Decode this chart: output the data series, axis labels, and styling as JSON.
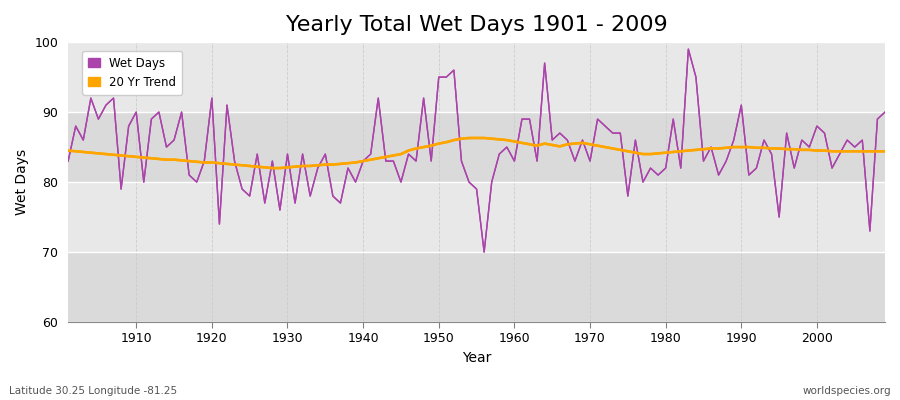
{
  "title": "Yearly Total Wet Days 1901 - 2009",
  "xlabel": "Year",
  "ylabel": "Wet Days",
  "xlim": [
    1901,
    2009
  ],
  "ylim": [
    60,
    100
  ],
  "yticks": [
    60,
    70,
    80,
    90,
    100
  ],
  "xticks": [
    1910,
    1920,
    1930,
    1940,
    1950,
    1960,
    1970,
    1980,
    1990,
    2000
  ],
  "wet_days_color": "#AA44AA",
  "trend_color": "#FFA500",
  "figure_bg_color": "#FFFFFF",
  "plot_bg_color": "#E8E8E8",
  "title_fontsize": 16,
  "label_fontsize": 10,
  "tick_fontsize": 9,
  "footer_left": "Latitude 30.25 Longitude -81.25",
  "footer_right": "worldspecies.org",
  "years": [
    1901,
    1902,
    1903,
    1904,
    1905,
    1906,
    1907,
    1908,
    1909,
    1910,
    1911,
    1912,
    1913,
    1914,
    1915,
    1916,
    1917,
    1918,
    1919,
    1920,
    1921,
    1922,
    1923,
    1924,
    1925,
    1926,
    1927,
    1928,
    1929,
    1930,
    1931,
    1932,
    1933,
    1934,
    1935,
    1936,
    1937,
    1938,
    1939,
    1940,
    1941,
    1942,
    1943,
    1944,
    1945,
    1946,
    1947,
    1948,
    1949,
    1950,
    1951,
    1952,
    1953,
    1954,
    1955,
    1956,
    1957,
    1958,
    1959,
    1960,
    1961,
    1962,
    1963,
    1964,
    1965,
    1966,
    1967,
    1968,
    1969,
    1970,
    1971,
    1972,
    1973,
    1974,
    1975,
    1976,
    1977,
    1978,
    1979,
    1980,
    1981,
    1982,
    1983,
    1984,
    1985,
    1986,
    1987,
    1988,
    1989,
    1990,
    1991,
    1992,
    1993,
    1994,
    1995,
    1996,
    1997,
    1998,
    1999,
    2000,
    2001,
    2002,
    2003,
    2004,
    2005,
    2006,
    2007,
    2008,
    2009
  ],
  "wet_days": [
    83,
    88,
    86,
    92,
    89,
    91,
    92,
    79,
    88,
    90,
    80,
    89,
    90,
    85,
    86,
    90,
    81,
    80,
    83,
    92,
    74,
    91,
    83,
    79,
    78,
    84,
    77,
    83,
    76,
    84,
    77,
    84,
    78,
    82,
    84,
    78,
    77,
    82,
    80,
    83,
    84,
    92,
    83,
    83,
    80,
    84,
    83,
    92,
    83,
    95,
    95,
    96,
    83,
    80,
    79,
    70,
    80,
    84,
    85,
    83,
    89,
    89,
    83,
    97,
    86,
    87,
    86,
    83,
    86,
    83,
    89,
    88,
    87,
    87,
    78,
    86,
    80,
    82,
    81,
    82,
    89,
    82,
    99,
    95,
    83,
    85,
    81,
    83,
    86,
    91,
    81,
    82,
    86,
    84,
    75,
    87,
    82,
    86,
    85,
    88,
    87,
    82,
    84,
    86,
    85,
    86,
    73,
    89,
    90
  ],
  "trend": [
    84.5,
    84.4,
    84.3,
    84.2,
    84.1,
    84.0,
    83.9,
    83.8,
    83.7,
    83.6,
    83.5,
    83.4,
    83.3,
    83.2,
    83.2,
    83.1,
    83.0,
    82.9,
    82.8,
    82.8,
    82.7,
    82.6,
    82.5,
    82.4,
    82.3,
    82.2,
    82.1,
    82.0,
    82.0,
    82.1,
    82.2,
    82.3,
    82.3,
    82.4,
    82.5,
    82.5,
    82.6,
    82.7,
    82.8,
    83.0,
    83.2,
    83.4,
    83.6,
    83.8,
    84.0,
    84.5,
    84.8,
    85.0,
    85.2,
    85.5,
    85.7,
    86.0,
    86.2,
    86.3,
    86.3,
    86.3,
    86.2,
    86.1,
    86.0,
    85.8,
    85.6,
    85.4,
    85.2,
    85.5,
    85.3,
    85.1,
    85.4,
    85.5,
    85.6,
    85.4,
    85.2,
    85.0,
    84.8,
    84.6,
    84.4,
    84.2,
    84.0,
    84.0,
    84.1,
    84.2,
    84.3,
    84.4,
    84.5,
    84.6,
    84.7,
    84.8,
    84.8,
    84.9,
    85.0,
    85.0,
    85.0,
    84.9,
    84.9,
    84.8,
    84.8,
    84.7,
    84.7,
    84.6,
    84.6,
    84.5,
    84.5,
    84.4,
    84.4,
    84.4,
    84.4,
    84.4,
    84.4,
    84.4,
    84.4
  ]
}
